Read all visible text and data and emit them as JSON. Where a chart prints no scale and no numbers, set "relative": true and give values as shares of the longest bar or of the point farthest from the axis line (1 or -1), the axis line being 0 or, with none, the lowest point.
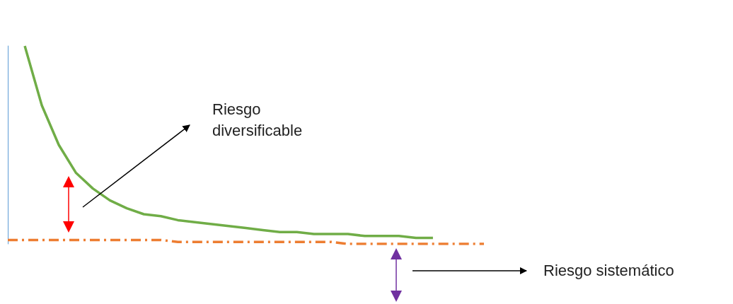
{
  "chart_data": {
    "type": "line",
    "relative": true,
    "marker": "none",
    "categories": [
      null,
      null,
      null,
      null,
      null,
      null,
      null,
      null,
      null,
      null,
      null,
      null,
      null,
      null,
      null,
      null,
      null,
      null,
      null,
      null,
      null,
      null,
      null,
      null,
      null,
      null,
      null,
      null,
      null
    ],
    "series": [
      {
        "color": "#70ad47",
        "line_style": "solid",
        "values": [
          null,
          1,
          0.7,
          0.5,
          0.36,
          0.28,
          0.22,
          0.18,
          0.15,
          0.14,
          0.12,
          0.11,
          0.1,
          0.09,
          0.08,
          0.07,
          0.06,
          0.06,
          0.05,
          0.05,
          0.05,
          0.04,
          0.04,
          0.04,
          0.03,
          0.03,
          null,
          null,
          null
        ]
      },
      {
        "color": "#ed7d31",
        "line_style": "dashed",
        "values": [
          0.02,
          0.02,
          0.02,
          0.02,
          0.02,
          0.02,
          0.02,
          0.02,
          0.02,
          0.02,
          0.01,
          0.01,
          0.01,
          0.01,
          0.01,
          0.01,
          0.01,
          0.01,
          0.01,
          0.01,
          0,
          0,
          0,
          0,
          0,
          0,
          0,
          0,
          0
        ]
      }
    ],
    "annotations": [
      "Riesgo diversificable",
      "Riesgo sistemático"
    ]
  }
}
